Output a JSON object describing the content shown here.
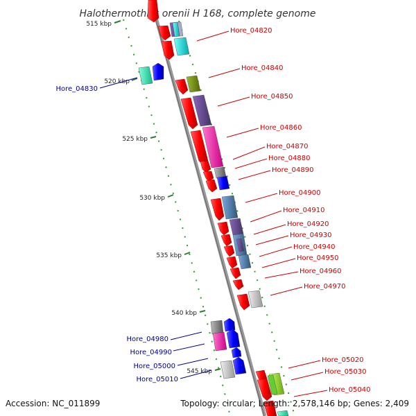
{
  "title": "Halothermothrix orenii H 168, complete genome",
  "footer": {
    "accession": "Accession: NC_011899",
    "summary": "Topology: circular; Length: 2,578,146 bp; Genes: 2,409"
  },
  "kbp_marks": [
    "515 kbp",
    "520 kbp",
    "525 kbp",
    "530 kbp",
    "535 kbp",
    "540 kbp",
    "545 kbp"
  ],
  "genes_right": [
    "Hore_04820",
    "Hore_04840",
    "Hore_04850",
    "Hore_04860",
    "Hore_04870",
    "Hore_04880",
    "Hore_04890",
    "Hore_04900",
    "Hore_04910",
    "Hore_04920",
    "Hore_04930",
    "Hore_04940",
    "Hore_04950",
    "Hore_04960",
    "Hore_04970",
    "Hore_05020",
    "Hore_05030",
    "Hore_05040"
  ],
  "genes_left": [
    "Hore_04830",
    "Hore_04980",
    "Hore_04990",
    "Hore_05000",
    "Hore_05010"
  ],
  "colors": {
    "forward_label": "#cc0000",
    "reverse_label": "#000099",
    "cds": "#ff0000",
    "reverse_cds": "#0000ff",
    "backbone": "#888888",
    "ruler": "#228b22"
  }
}
